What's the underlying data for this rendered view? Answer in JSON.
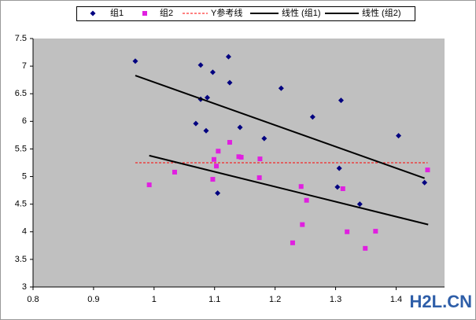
{
  "chart_data": {
    "type": "scatter",
    "series": [
      {
        "name": "组1",
        "kind": "points",
        "marker": "diamond",
        "color": "#000080",
        "x": [
          0.969,
          1.077,
          1.123,
          1.097,
          1.125,
          1.077,
          1.088,
          1.21,
          1.309,
          1.069,
          1.086,
          1.142,
          1.262,
          1.182,
          1.404,
          1.306,
          1.105,
          1.303,
          1.34,
          1.447
        ],
        "values": [
          7.09,
          7.02,
          7.17,
          6.89,
          6.7,
          6.4,
          6.43,
          6.6,
          6.38,
          5.96,
          5.83,
          5.89,
          6.08,
          5.69,
          5.74,
          5.15,
          4.7,
          4.81,
          4.5,
          4.89
        ]
      },
      {
        "name": "组2",
        "kind": "points",
        "marker": "square",
        "color": "#e020e0",
        "x": [
          0.992,
          1.034,
          1.125,
          1.106,
          1.099,
          1.103,
          1.14,
          1.144,
          1.175,
          1.097,
          1.174,
          1.243,
          1.252,
          1.312,
          1.245,
          1.319,
          1.366,
          1.229,
          1.349,
          1.452
        ],
        "values": [
          4.85,
          5.08,
          5.62,
          5.46,
          5.31,
          5.19,
          5.36,
          5.35,
          5.32,
          4.95,
          4.98,
          4.82,
          4.57,
          4.78,
          4.13,
          4.0,
          4.01,
          3.8,
          3.7,
          5.12
        ]
      },
      {
        "name": "Y参考线",
        "kind": "line",
        "dashed": true,
        "color": "#ff0000",
        "x": [
          0.969,
          1.452
        ],
        "values": [
          5.25,
          5.25
        ]
      },
      {
        "name": "线性 (组1)",
        "kind": "line",
        "dashed": false,
        "color": "#000000",
        "x": [
          0.969,
          1.447
        ],
        "values": [
          6.83,
          4.97
        ]
      },
      {
        "name": "线性 (组2)",
        "kind": "line",
        "dashed": false,
        "color": "#000000",
        "x": [
          0.992,
          1.453
        ],
        "values": [
          5.38,
          4.13
        ]
      }
    ],
    "xlim": [
      0.8,
      1.48
    ],
    "xticks": [
      0.8,
      0.9,
      1,
      1.1,
      1.2,
      1.3,
      1.4
    ],
    "ylim": [
      3,
      7.5
    ],
    "yticks": [
      3,
      3.5,
      4,
      4.5,
      5,
      5.5,
      6,
      6.5,
      7,
      7.5
    ],
    "grid": false,
    "legend": "top"
  },
  "watermark": "H2L.CN"
}
